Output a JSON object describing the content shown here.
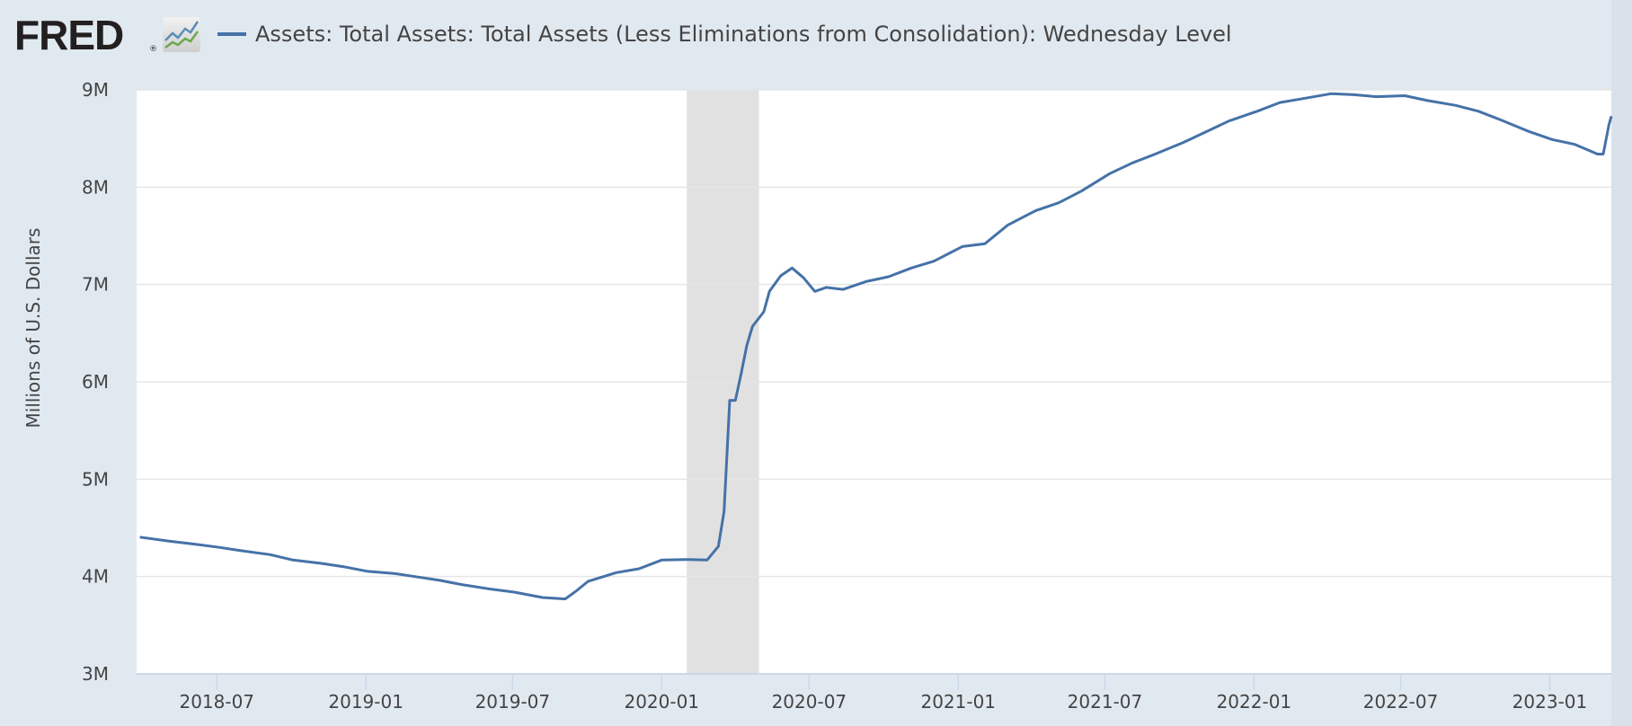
{
  "header": {
    "logo_text": "FRED",
    "logo_icon": "chart-line-icon",
    "legend_label": "Assets: Total Assets: Total Assets (Less Eliminations from Consolidation): Wednesday Level"
  },
  "colors": {
    "series": "#4572a7",
    "recession": "#e1e1e1",
    "background": "#e1e9f0",
    "grid": "#e6e6e6"
  },
  "chart_data": {
    "type": "line",
    "title": "Assets: Total Assets: Total Assets (Less Eliminations from Consolidation): Wednesday Level",
    "xlabel": "",
    "ylabel": "Millions of U.S. Dollars",
    "xlim": [
      "2018-03-24",
      "2023-03-18"
    ],
    "ylim": [
      3000000,
      9000000
    ],
    "yticks": [
      {
        "value": 3000000,
        "label": "3M"
      },
      {
        "value": 4000000,
        "label": "4M"
      },
      {
        "value": 5000000,
        "label": "5M"
      },
      {
        "value": 6000000,
        "label": "6M"
      },
      {
        "value": 7000000,
        "label": "7M"
      },
      {
        "value": 8000000,
        "label": "8M"
      },
      {
        "value": 9000000,
        "label": "9M"
      }
    ],
    "xticks": [
      "2018-07",
      "2019-01",
      "2019-07",
      "2020-01",
      "2020-07",
      "2021-01",
      "2021-07",
      "2022-01",
      "2022-07",
      "2023-01"
    ],
    "grid": true,
    "legend": "top-left",
    "recessions": [
      [
        "2020-02-01",
        "2020-04-30"
      ]
    ],
    "series": [
      {
        "name": "Assets: Total Assets: Total Assets (Less Eliminations from Consolidation): Wednesday Level",
        "points": [
          [
            "2018-03-28",
            4405000
          ],
          [
            "2018-05-02",
            4365000
          ],
          [
            "2018-06-06",
            4330000
          ],
          [
            "2018-07-04",
            4300000
          ],
          [
            "2018-08-01",
            4265000
          ],
          [
            "2018-09-05",
            4225000
          ],
          [
            "2018-10-03",
            4170000
          ],
          [
            "2018-11-07",
            4135000
          ],
          [
            "2018-12-05",
            4100000
          ],
          [
            "2019-01-02",
            4055000
          ],
          [
            "2019-02-06",
            4030000
          ],
          [
            "2019-03-06",
            3995000
          ],
          [
            "2019-04-03",
            3960000
          ],
          [
            "2019-05-01",
            3915000
          ],
          [
            "2019-06-05",
            3870000
          ],
          [
            "2019-07-03",
            3840000
          ],
          [
            "2019-08-07",
            3785000
          ],
          [
            "2019-09-04",
            3770000
          ],
          [
            "2019-09-18",
            3855000
          ],
          [
            "2019-10-02",
            3950000
          ],
          [
            "2019-11-06",
            4040000
          ],
          [
            "2019-12-04",
            4080000
          ],
          [
            "2020-01-01",
            4170000
          ],
          [
            "2020-02-05",
            4175000
          ],
          [
            "2020-02-26",
            4170000
          ],
          [
            "2020-03-04",
            4240000
          ],
          [
            "2020-03-11",
            4310000
          ],
          [
            "2020-03-18",
            4670000
          ],
          [
            "2020-03-25",
            5810000
          ],
          [
            "2020-04-01",
            5810000
          ],
          [
            "2020-04-08",
            6080000
          ],
          [
            "2020-04-15",
            6370000
          ],
          [
            "2020-04-22",
            6570000
          ],
          [
            "2020-05-06",
            6720000
          ],
          [
            "2020-05-13",
            6930000
          ],
          [
            "2020-05-27",
            7090000
          ],
          [
            "2020-06-10",
            7170000
          ],
          [
            "2020-06-24",
            7070000
          ],
          [
            "2020-07-08",
            6930000
          ],
          [
            "2020-07-22",
            6970000
          ],
          [
            "2020-08-12",
            6950000
          ],
          [
            "2020-09-09",
            7030000
          ],
          [
            "2020-10-07",
            7080000
          ],
          [
            "2020-11-04",
            7170000
          ],
          [
            "2020-12-02",
            7240000
          ],
          [
            "2021-01-06",
            7390000
          ],
          [
            "2021-02-03",
            7420000
          ],
          [
            "2021-03-03",
            7610000
          ],
          [
            "2021-04-07",
            7760000
          ],
          [
            "2021-05-05",
            7840000
          ],
          [
            "2021-06-02",
            7960000
          ],
          [
            "2021-07-07",
            8140000
          ],
          [
            "2021-08-04",
            8250000
          ],
          [
            "2021-09-01",
            8340000
          ],
          [
            "2021-10-06",
            8460000
          ],
          [
            "2021-11-03",
            8570000
          ],
          [
            "2021-12-01",
            8680000
          ],
          [
            "2022-01-05",
            8780000
          ],
          [
            "2022-02-02",
            8870000
          ],
          [
            "2022-03-02",
            8910000
          ],
          [
            "2022-04-06",
            8960000
          ],
          [
            "2022-05-04",
            8950000
          ],
          [
            "2022-06-01",
            8930000
          ],
          [
            "2022-07-06",
            8940000
          ],
          [
            "2022-08-03",
            8890000
          ],
          [
            "2022-09-07",
            8840000
          ],
          [
            "2022-10-05",
            8780000
          ],
          [
            "2022-11-02",
            8690000
          ],
          [
            "2022-12-07",
            8570000
          ],
          [
            "2023-01-04",
            8490000
          ],
          [
            "2023-02-01",
            8440000
          ],
          [
            "2023-03-01",
            8340000
          ],
          [
            "2023-03-08",
            8340000
          ],
          [
            "2023-03-15",
            8640000
          ],
          [
            "2023-03-18",
            8730000
          ]
        ]
      }
    ]
  }
}
